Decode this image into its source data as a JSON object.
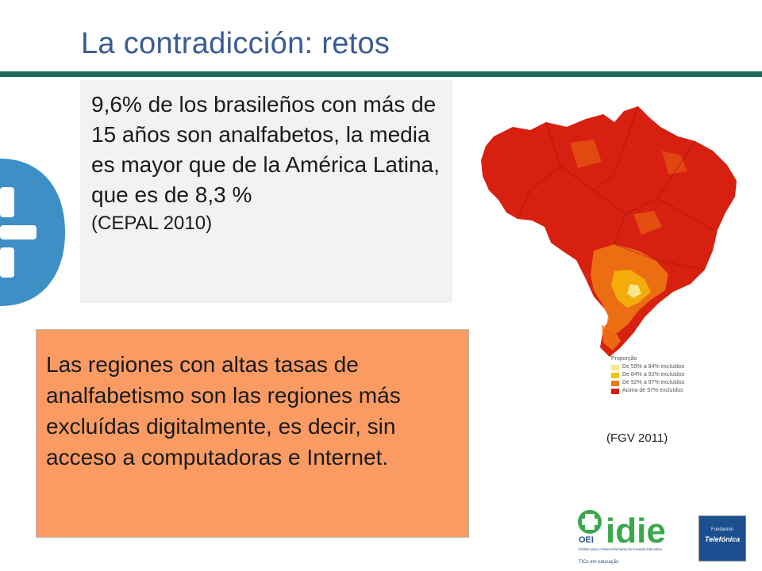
{
  "slide": {
    "title": "La contradicción: retos"
  },
  "box_top": {
    "text": "9,6% de los brasileños con más de 15 años son analfabetos, la media es mayor que de la América Latina, que es de 8,3 %",
    "source": "(CEPAL 2010)"
  },
  "box_bottom": {
    "text": "Las regiones con altas tasas de analfabetismo son las regiones más excluídas digitalmente, es decir, sin acceso a computadoras e Internet."
  },
  "map": {
    "legend_title": "Proporção",
    "legend": [
      {
        "label": "De 59% a 84% excluídos",
        "color": "#f7e98a"
      },
      {
        "label": "De 84% a 92% excluídos",
        "color": "#f5c20a"
      },
      {
        "label": "De 92% a 97% excluídos",
        "color": "#f07c14"
      },
      {
        "label": "Acima de 97% excluídos",
        "color": "#d91e10"
      }
    ],
    "credit": "(FGV 2011)"
  },
  "logos": {
    "oei": "OEI",
    "idie": "idie",
    "idie_tagline": "Instituto para o Desenvolvimento da Inovação Educativa",
    "idie_sub": "TICs em educação",
    "telefonica_small": "Fundación",
    "telefonica": "Telefónica"
  },
  "colors": {
    "title": "#3a5b94",
    "rule": "#1f6b5a",
    "box_top_bg": "#f2f2f2",
    "box_bottom_bg": "#f99b63",
    "logo_blue": "#3d8fc6"
  }
}
